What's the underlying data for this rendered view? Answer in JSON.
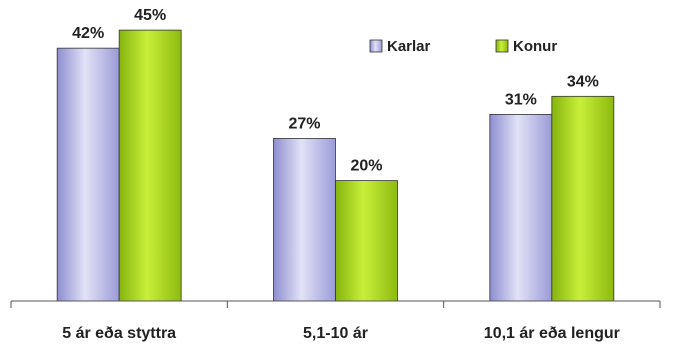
{
  "chart_data": {
    "type": "bar",
    "categories": [
      "5 ár eða styttra",
      "5,1-10 ár",
      "10,1 ár eða lengur"
    ],
    "series": [
      {
        "name": "Karlar",
        "values": [
          42,
          27,
          31
        ],
        "color": "#b9b9e6"
      },
      {
        "name": "Konur",
        "values": [
          45,
          20,
          34
        ],
        "color": "#a6d21e"
      }
    ],
    "value_suffix": "%",
    "ylim": [
      0,
      50
    ],
    "grid": false,
    "legend_position": "top-right",
    "title": "",
    "xlabel": "",
    "ylabel": ""
  }
}
